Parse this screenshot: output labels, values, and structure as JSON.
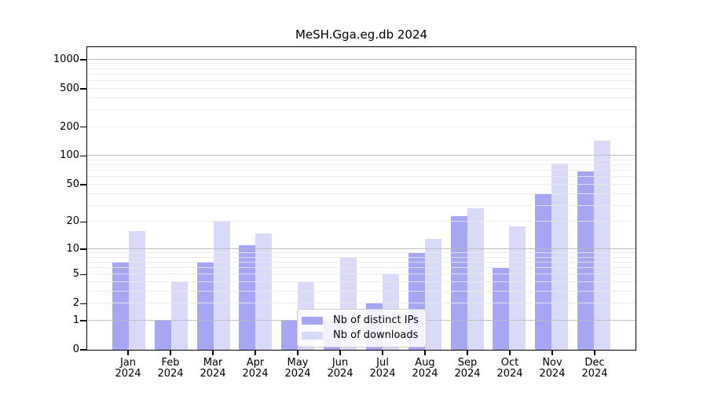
{
  "title": "MeSH.Gga.eg.db 2024",
  "chart_data": {
    "type": "bar",
    "title": "MeSH.Gga.eg.db 2024",
    "categories": [
      "Jan",
      "Feb",
      "Mar",
      "Apr",
      "May",
      "Jun",
      "Jul",
      "Aug",
      "Sep",
      "Oct",
      "Nov",
      "Dec"
    ],
    "year": "2024",
    "series": [
      {
        "name": "Nb of distinct IPs",
        "color": "#a6a6f4",
        "values": [
          7,
          1,
          7,
          11,
          1,
          1,
          2,
          9,
          23,
          6,
          40,
          69
        ]
      },
      {
        "name": "Nb of downloads",
        "color": "#d9d9f8",
        "values": [
          16,
          4,
          20,
          15,
          4,
          8,
          5,
          13,
          28,
          18,
          83,
          143
        ]
      }
    ],
    "xlabel": "",
    "ylabel": "",
    "y_ticks": [
      0,
      1,
      2,
      5,
      10,
      20,
      50,
      100,
      200,
      500,
      1000
    ],
    "y_tick_labels": [
      "0",
      "1",
      "2",
      "5",
      "10",
      "20",
      "50",
      "100",
      "200",
      "500",
      "1000"
    ],
    "ylim": [
      0,
      1318
    ],
    "scale": "log10(1+y)",
    "grid": "major decades dark, log minors light, drawn over bars",
    "legend_position": "inside, lower-center"
  },
  "colors": {
    "bar_distinct_ips": "#a6a6f4",
    "bar_downloads": "#d9d9f8",
    "grid_major": "#bababa",
    "grid_minor": "#e9e9e9",
    "axis": "#000000",
    "legend_border": "#cccccc"
  }
}
